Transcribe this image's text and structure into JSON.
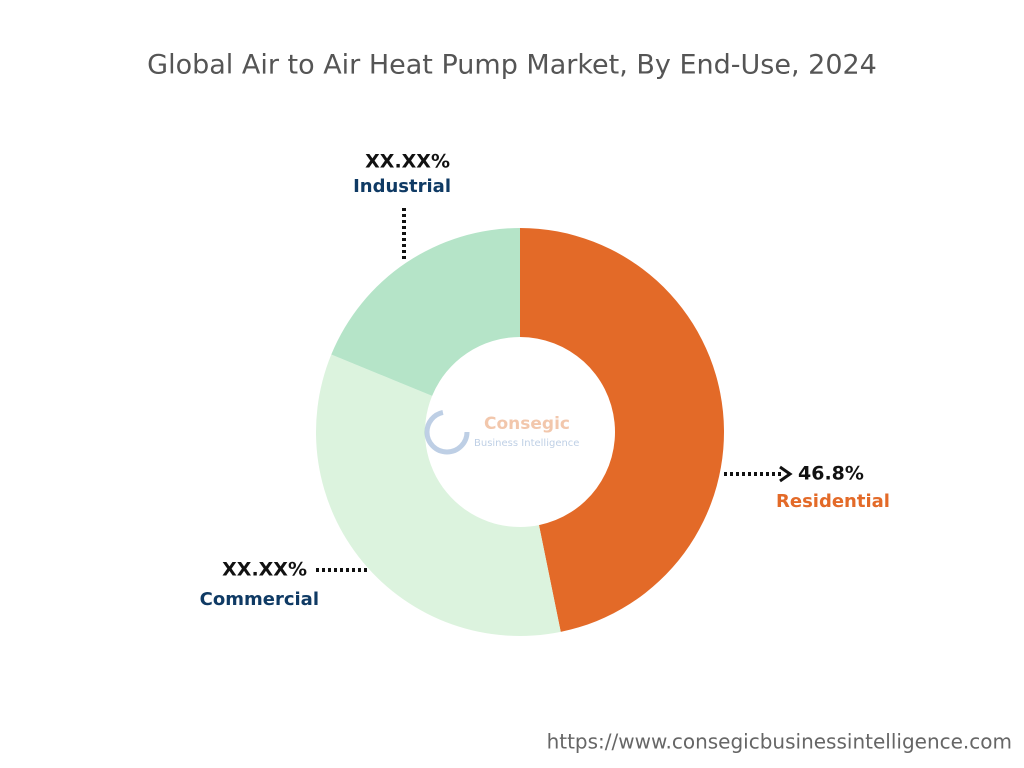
{
  "chart_data": {
    "type": "donut",
    "title": "Global Air to Air Heat Pump Market, By End-Use, 2024",
    "categories": [
      "Residential",
      "Commercial",
      "Industrial"
    ],
    "values": [
      46.8,
      34.4,
      18.8
    ],
    "value_labels": [
      "46.8%",
      "XX.XX%",
      "XX.XX%"
    ],
    "colors": [
      "#e36a28",
      "#dcf3de",
      "#b5e4c8"
    ],
    "label_colors": [
      "#e36a28",
      "#0f3a64",
      "#0f3a64"
    ]
  },
  "watermark": {
    "name": "Consegic",
    "tagline": "Business Intelligence"
  },
  "footer": "https://www.consegicbusinessintelligence.com"
}
